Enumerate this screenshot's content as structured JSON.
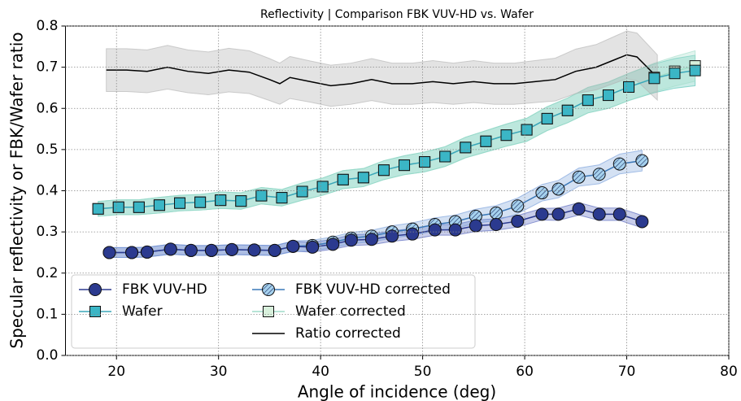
{
  "chart_data": {
    "type": "line",
    "title": "Reflectivity  |  Comparison FBK VUV-HD vs. Wafer",
    "xlabel": "Angle of incidence (deg)",
    "ylabel": "Specular reflectivity  or  FBK/Wafer ratio",
    "xlim": [
      15,
      80
    ],
    "ylim": [
      0,
      0.8
    ],
    "xticks": [
      20,
      30,
      40,
      50,
      60,
      70,
      80
    ],
    "yticks": [
      {
        "value": 0,
        "label": "0.0"
      },
      {
        "value": 0.1,
        "label": "0.1"
      },
      {
        "value": 0.2,
        "label": "0.2"
      },
      {
        "value": 0.3,
        "label": "0.3"
      },
      {
        "value": 0.4,
        "label": "0.4"
      },
      {
        "value": 0.5,
        "label": "0.5"
      },
      {
        "value": 0.6,
        "label": "0.6"
      },
      {
        "value": 0.7,
        "label": "0.7"
      },
      {
        "value": 0.8,
        "label": "0.8"
      }
    ],
    "grid": true,
    "legend": "lower left",
    "series": [
      {
        "name": "FBK VUV-HD",
        "color": "#2b3a8f",
        "fill": "#2b3a8f",
        "band_color": "#4a5ab8",
        "marker": "circle",
        "x": [
          19.3,
          21.5,
          23,
          25.3,
          27.3,
          29.3,
          31.3,
          33.5,
          35.5,
          37.3,
          39.2,
          41.2,
          43,
          45,
          47,
          49,
          51.2,
          53.2,
          55.2,
          57.2,
          59.3,
          61.7,
          63.3,
          65.3,
          67.3,
          69.3,
          71.5
        ],
        "values": [
          0.25,
          0.25,
          0.251,
          0.258,
          0.255,
          0.255,
          0.257,
          0.256,
          0.255,
          0.265,
          0.263,
          0.27,
          0.28,
          0.282,
          0.29,
          0.295,
          0.305,
          0.305,
          0.315,
          0.318,
          0.326,
          0.343,
          0.343,
          0.356,
          0.343,
          0.343,
          0.325
        ],
        "error": [
          0.012,
          0.012,
          0.012,
          0.012,
          0.012,
          0.012,
          0.012,
          0.012,
          0.012,
          0.012,
          0.012,
          0.012,
          0.013,
          0.013,
          0.013,
          0.013,
          0.013,
          0.013,
          0.014,
          0.014,
          0.014,
          0.014,
          0.015,
          0.015,
          0.015,
          0.015,
          0.015
        ]
      },
      {
        "name": "Wafer",
        "color": "#3aa6b9",
        "fill": "#3bb6c6",
        "band_color": "#4cc0b0",
        "marker": "square",
        "x": [
          18.2,
          20.2,
          22.2,
          24.2,
          26.2,
          28.2,
          30.2,
          32.2,
          34.2,
          36.2,
          38.2,
          40.2,
          42.2,
          44.2,
          46.2,
          48.2,
          50.2,
          52.2,
          54.2,
          56.2,
          58.2,
          60.2,
          62.2,
          64.2,
          66.2,
          68.2,
          70.2,
          72.7,
          74.7,
          76.7
        ],
        "values": [
          0.356,
          0.36,
          0.36,
          0.365,
          0.37,
          0.372,
          0.377,
          0.375,
          0.388,
          0.383,
          0.398,
          0.41,
          0.427,
          0.432,
          0.45,
          0.462,
          0.47,
          0.483,
          0.505,
          0.52,
          0.535,
          0.548,
          0.575,
          0.595,
          0.62,
          0.632,
          0.652,
          0.673,
          0.685,
          0.692
        ],
        "error": [
          0.018,
          0.018,
          0.018,
          0.019,
          0.019,
          0.019,
          0.02,
          0.02,
          0.02,
          0.02,
          0.021,
          0.021,
          0.022,
          0.022,
          0.023,
          0.023,
          0.024,
          0.024,
          0.025,
          0.026,
          0.027,
          0.028,
          0.029,
          0.03,
          0.031,
          0.032,
          0.033,
          0.035,
          0.036,
          0.037
        ]
      },
      {
        "name": "FBK VUV-HD corrected",
        "color": "#3a78b8",
        "fill": "#a6d2ee",
        "band_color": "#6f9ad8",
        "marker": "circle",
        "hatch": true,
        "x": [
          19.3,
          21.5,
          23,
          25.3,
          27.3,
          29.3,
          31.3,
          33.5,
          35.5,
          37.3,
          39.2,
          41.2,
          43,
          45,
          47,
          49,
          51.2,
          53.2,
          55.2,
          57.2,
          59.3,
          61.7,
          63.3,
          65.3,
          67.3,
          69.3,
          71.5
        ],
        "values": [
          0.25,
          0.25,
          0.251,
          0.258,
          0.255,
          0.255,
          0.257,
          0.256,
          0.255,
          0.265,
          0.267,
          0.275,
          0.285,
          0.29,
          0.3,
          0.307,
          0.318,
          0.325,
          0.338,
          0.346,
          0.363,
          0.395,
          0.404,
          0.433,
          0.44,
          0.465,
          0.473
        ],
        "error": [
          0.012,
          0.012,
          0.012,
          0.012,
          0.012,
          0.012,
          0.012,
          0.012,
          0.012,
          0.013,
          0.013,
          0.013,
          0.014,
          0.014,
          0.015,
          0.015,
          0.016,
          0.016,
          0.017,
          0.018,
          0.019,
          0.02,
          0.021,
          0.022,
          0.023,
          0.024,
          0.025
        ]
      },
      {
        "name": "Wafer corrected",
        "color": "#9fdcc8",
        "fill": "#d8f0dc",
        "band_color": "#9fdcc8",
        "marker": "square",
        "x": [
          18.2,
          20.2,
          22.2,
          24.2,
          26.2,
          28.2,
          30.2,
          32.2,
          34.2,
          36.2,
          38.2,
          40.2,
          42.2,
          44.2,
          46.2,
          48.2,
          50.2,
          52.2,
          54.2,
          56.2,
          58.2,
          60.2,
          62.2,
          64.2,
          66.2,
          68.2,
          70.2,
          72.7,
          74.7,
          76.7
        ],
        "values": [
          0.356,
          0.36,
          0.36,
          0.365,
          0.37,
          0.372,
          0.377,
          0.375,
          0.388,
          0.383,
          0.398,
          0.41,
          0.427,
          0.432,
          0.45,
          0.462,
          0.47,
          0.483,
          0.505,
          0.52,
          0.535,
          0.548,
          0.575,
          0.595,
          0.62,
          0.632,
          0.652,
          0.675,
          0.69,
          0.703
        ],
        "error": [
          0.018,
          0.018,
          0.018,
          0.019,
          0.019,
          0.019,
          0.02,
          0.02,
          0.02,
          0.02,
          0.021,
          0.021,
          0.022,
          0.022,
          0.023,
          0.023,
          0.024,
          0.024,
          0.025,
          0.026,
          0.027,
          0.028,
          0.029,
          0.03,
          0.031,
          0.032,
          0.033,
          0.035,
          0.036,
          0.037
        ]
      },
      {
        "name": "Ratio corrected",
        "color": "#000000",
        "band_color": "#b0b0b0",
        "marker": "none",
        "x": [
          19,
          21,
          23,
          25,
          27,
          29,
          31,
          33,
          35,
          36,
          37,
          39,
          41,
          43,
          45,
          47,
          49,
          51,
          53,
          55,
          57,
          59,
          61,
          63,
          65,
          67,
          69,
          70,
          71,
          73
        ],
        "values": [
          0.693,
          0.693,
          0.69,
          0.7,
          0.69,
          0.685,
          0.693,
          0.688,
          0.67,
          0.66,
          0.675,
          0.665,
          0.655,
          0.66,
          0.67,
          0.66,
          0.66,
          0.665,
          0.66,
          0.665,
          0.66,
          0.66,
          0.665,
          0.67,
          0.69,
          0.7,
          0.72,
          0.73,
          0.725,
          0.675
        ],
        "error": [
          0.052,
          0.052,
          0.052,
          0.053,
          0.052,
          0.052,
          0.053,
          0.052,
          0.051,
          0.05,
          0.051,
          0.05,
          0.05,
          0.05,
          0.051,
          0.05,
          0.05,
          0.051,
          0.05,
          0.051,
          0.05,
          0.05,
          0.051,
          0.052,
          0.054,
          0.055,
          0.057,
          0.058,
          0.058,
          0.055
        ]
      }
    ]
  }
}
